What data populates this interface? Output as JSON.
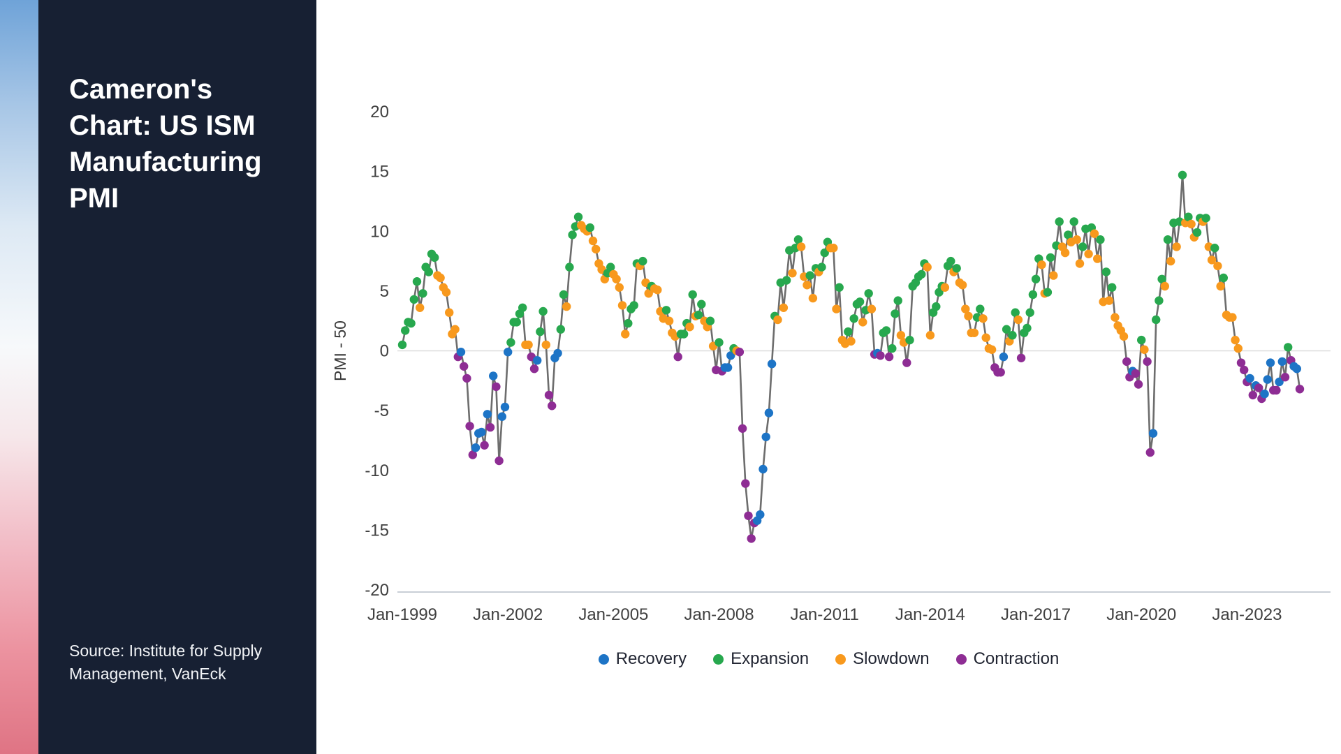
{
  "sidebar": {
    "title": "Cameron's Chart: US ISM Manufacturing PMI",
    "source": "Source: Institute for Supply Management, VanEck",
    "background_color": "#172033"
  },
  "chart_data": {
    "type": "line",
    "title": "Cameron's Chart: US ISM Manufacturing PMI",
    "xlabel": "",
    "ylabel": "PMI - 50",
    "ylim": [
      -20,
      20
    ],
    "yticks": [
      20,
      15,
      10,
      5,
      0,
      -5,
      -10,
      -15,
      -20
    ],
    "grid": "zero-line-only",
    "x_start": "1999-01",
    "x_end": "2024-07",
    "frequency": "monthly",
    "xtick_labels": [
      "Jan-1999",
      "Jan-2002",
      "Jan-2005",
      "Jan-2008",
      "Jan-2011",
      "Jan-2014",
      "Jan-2017",
      "Jan-2020",
      "Jan-2023"
    ],
    "xtick_indices": [
      0,
      36,
      72,
      108,
      144,
      180,
      216,
      252,
      288
    ],
    "legend_position": "bottom",
    "legend": [
      {
        "key": "R",
        "label": "Recovery",
        "color": "#1d74c6"
      },
      {
        "key": "E",
        "label": "Expansion",
        "color": "#27a84e"
      },
      {
        "key": "S",
        "label": "Slowdown",
        "color": "#f8991d"
      },
      {
        "key": "C",
        "label": "Contraction",
        "color": "#8e2d94"
      }
    ],
    "line_color": "#6d6d6d",
    "values_by_year": [
      [
        0.5,
        1.7,
        2.4,
        2.3,
        4.3,
        5.8,
        3.6,
        4.8,
        7.0,
        6.6,
        8.1,
        7.8
      ],
      [
        6.3,
        6.1,
        5.3,
        4.9,
        3.2,
        1.4,
        1.8,
        -0.5,
        -0.1,
        -1.3,
        -2.3,
        -6.3
      ],
      [
        -8.7,
        -8.1,
        -6.9,
        -6.8,
        -7.9,
        -5.3,
        -6.4,
        -2.1,
        -3.0,
        -9.2,
        -5.5,
        -4.7
      ],
      [
        -0.1,
        0.7,
        2.4,
        2.4,
        3.1,
        3.6,
        0.5,
        0.5,
        -0.5,
        -1.5,
        -0.8,
        1.6
      ],
      [
        3.3,
        0.5,
        -3.7,
        -4.6,
        -0.6,
        -0.2,
        1.8,
        4.7,
        3.7,
        7.0,
        9.7,
        10.4
      ],
      [
        11.2,
        10.5,
        10.2,
        10.0,
        10.3,
        9.2,
        8.5,
        7.3,
        6.8,
        6.0,
        6.5,
        7.0
      ],
      [
        6.4,
        6.0,
        5.3,
        3.8,
        1.4,
        2.3,
        3.5,
        3.8,
        7.3,
        7.1,
        7.5,
        5.7
      ],
      [
        4.8,
        5.4,
        5.2,
        5.1,
        3.3,
        2.7,
        3.4,
        2.5,
        1.5,
        1.2,
        -0.5,
        1.4
      ],
      [
        1.4,
        2.3,
        2.0,
        4.7,
        2.9,
        3.0,
        3.9,
        2.5,
        2.0,
        2.5,
        0.4,
        -1.6
      ],
      [
        0.7,
        -1.7,
        -1.4,
        -1.4,
        -0.4,
        0.2,
        0.0,
        -0.1,
        -6.5,
        -11.1,
        -13.8,
        -15.7
      ],
      [
        -14.4,
        -14.2,
        -13.7,
        -9.9,
        -7.2,
        -5.2,
        -1.1,
        2.9,
        2.6,
        5.7,
        3.6,
        5.9
      ],
      [
        8.4,
        6.5,
        8.6,
        9.3,
        8.7,
        6.2,
        5.5,
        6.3,
        4.4,
        6.9,
        6.6,
        7.0
      ],
      [
        8.2,
        9.1,
        8.6,
        8.6,
        3.5,
        5.3,
        0.9,
        0.6,
        1.6,
        0.8,
        2.7,
        3.9
      ],
      [
        4.1,
        2.4,
        3.4,
        4.8,
        3.5,
        -0.3,
        -0.2,
        -0.4,
        1.5,
        1.7,
        -0.5,
        0.2
      ],
      [
        3.1,
        4.2,
        1.3,
        0.7,
        -1.0,
        0.9,
        5.4,
        5.7,
        6.2,
        6.4,
        7.3,
        7.0
      ],
      [
        1.3,
        3.2,
        3.7,
        4.9,
        5.4,
        5.3,
        7.1,
        7.5,
        6.6,
        6.9,
        5.7,
        5.5
      ],
      [
        3.5,
        2.9,
        1.5,
        1.5,
        2.8,
        3.5,
        2.7,
        1.1,
        0.2,
        0.1,
        -1.4,
        -1.8
      ],
      [
        -1.8,
        -0.5,
        1.8,
        0.8,
        1.3,
        3.2,
        2.6,
        -0.6,
        1.5,
        1.9,
        3.2,
        4.7
      ],
      [
        6.0,
        7.7,
        7.2,
        4.8,
        4.9,
        7.8,
        6.3,
        8.8,
        10.8,
        8.7,
        8.2,
        9.7
      ],
      [
        9.1,
        10.8,
        9.3,
        7.3,
        8.7,
        10.2,
        8.1,
        10.3,
        9.8,
        7.7,
        9.3,
        4.1
      ],
      [
        6.6,
        4.2,
        5.3,
        2.8,
        2.1,
        1.7,
        1.2,
        -0.9,
        -2.2,
        -1.7,
        -1.9,
        -2.8
      ],
      [
        0.9,
        0.1,
        -0.9,
        -8.5,
        -6.9,
        2.6,
        4.2,
        6.0,
        5.4,
        9.3,
        7.5,
        10.7
      ],
      [
        8.7,
        10.8,
        14.7,
        10.7,
        11.2,
        10.6,
        9.5,
        9.9,
        11.1,
        10.8,
        11.1,
        8.7
      ],
      [
        7.6,
        8.6,
        7.1,
        5.4,
        6.1,
        3.0,
        2.8,
        2.8,
        0.9,
        0.2,
        -1.0,
        -1.6
      ],
      [
        -2.6,
        -2.3,
        -3.7,
        -2.9,
        -3.1,
        -4.0,
        -3.6,
        -2.4,
        -1.0,
        -3.3,
        -3.3,
        -2.6
      ],
      [
        -0.9,
        -2.2,
        0.3,
        -0.8,
        -1.3,
        -1.5,
        -3.2
      ]
    ],
    "regimes_by_year": [
      "EEEEEESEEEEE",
      "SSSSSSSCRCCC",
      "CRRRCRCRCCRR",
      "REEEEESSCCRE",
      "ESCCRREESEEE",
      "ESSSESSSSSEE",
      "SSSSSEEEESES",
      "SESSSSESSSCE",
      "EESESEESSESC",
      "ECRRRESCCCCC",
      "CRRRRRRESESE",
      "ESEESSSESESE",
      "EESSSESSESEE",
      "ESEESCRCEECE",
      "EESSCEEEEEES",
      "SEEEESEESESS",
      "SSSSEESSSSCC",
      "CRESEESCEEEE",
      "EESSEESEESSE",
      "SESSEESESSES",
      "ESESSSSCCRCC",
      "ESCCREEESESE",
      "SEESESSEESES",
      "SESSESSSSSCC",
      "CRCRCCRRRCCR",
      "RCECRRC"
    ]
  }
}
